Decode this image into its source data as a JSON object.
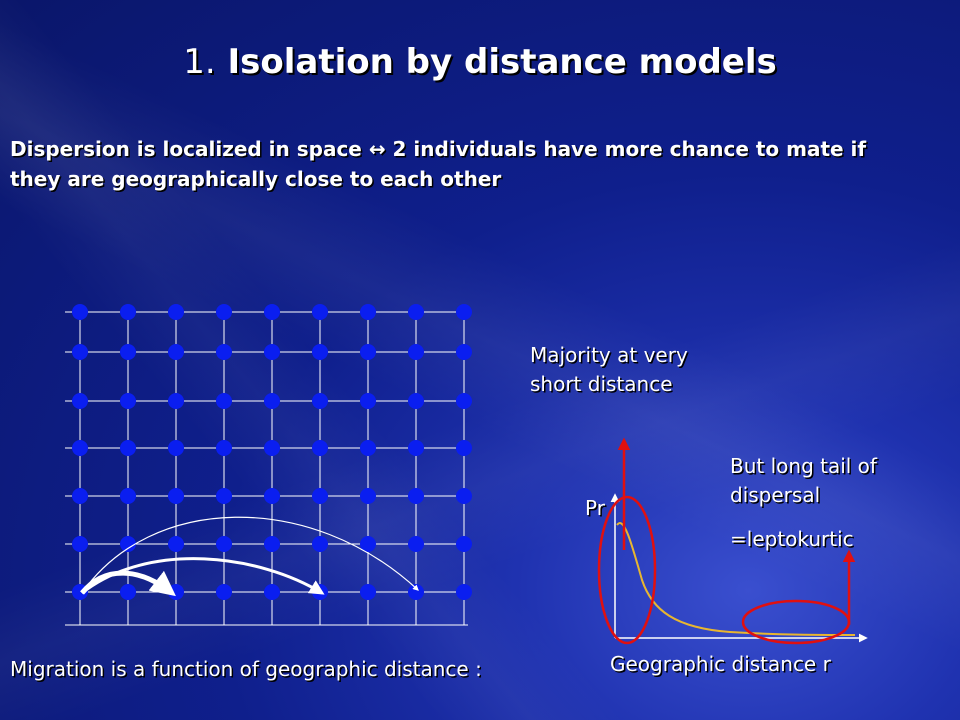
{
  "slide": {
    "title_number": "1.",
    "title_text": "Isolation by distance models",
    "intro_line1": "Dispersion is localized in space ↔ 2 individuals have more chance to mate if",
    "intro_line2": "they are geographically close to each other",
    "note_majority_line1": "Majority at very",
    "note_majority_line2": "short distance",
    "note_tail_line1": "But long tail of",
    "note_tail_line2": "dispersal",
    "note_leptokurtic": "=leptokurtic",
    "axis_y_label": "Pr",
    "axis_x_label": "Geographic distance r",
    "caption": "Migration is a function of geographic distance  :"
  },
  "colors": {
    "dot": "#0a1ef0",
    "grid_line": "#ffffff",
    "curve": "#e8b630",
    "highlight": "#e01010"
  }
}
